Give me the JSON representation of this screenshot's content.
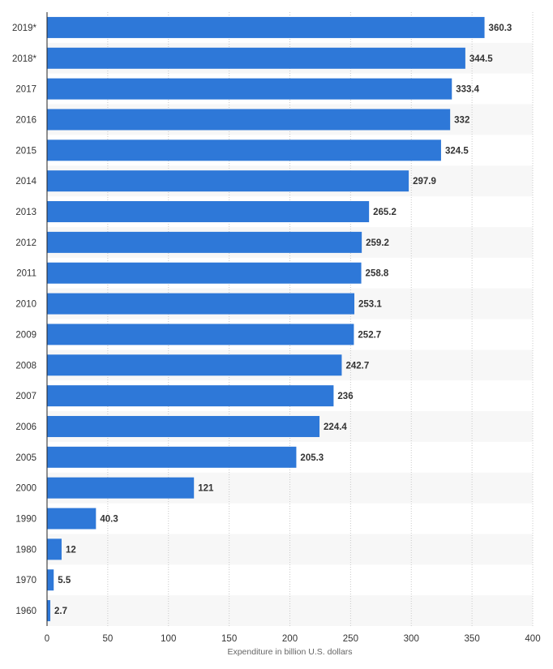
{
  "chart_data": {
    "type": "bar",
    "orientation": "horizontal",
    "categories": [
      "2019*",
      "2018*",
      "2017",
      "2016",
      "2015",
      "2014",
      "2013",
      "2012",
      "2011",
      "2010",
      "2009",
      "2008",
      "2007",
      "2006",
      "2005",
      "2000",
      "1990",
      "1980",
      "1970",
      "1960"
    ],
    "values": [
      360.3,
      344.5,
      333.4,
      332,
      324.5,
      297.9,
      265.2,
      259.2,
      258.8,
      253.1,
      252.7,
      242.7,
      236,
      224.4,
      205.3,
      121,
      40.3,
      12,
      5.5,
      2.7
    ],
    "value_labels": [
      "360.3",
      "344.5",
      "333.4",
      "332",
      "324.5",
      "297.9",
      "265.2",
      "259.2",
      "258.8",
      "253.1",
      "252.7",
      "242.7",
      "236",
      "224.4",
      "205.3",
      "121",
      "40.3",
      "12",
      "5.5",
      "2.7"
    ],
    "xlabel": "Expenditure in billion U.S. dollars",
    "ylabel": "",
    "xlim": [
      0,
      400
    ],
    "xticks": [
      "0",
      "50",
      "100",
      "150",
      "200",
      "250",
      "300",
      "350",
      "400"
    ],
    "grid": true,
    "bar_color": "#2e78d8"
  }
}
